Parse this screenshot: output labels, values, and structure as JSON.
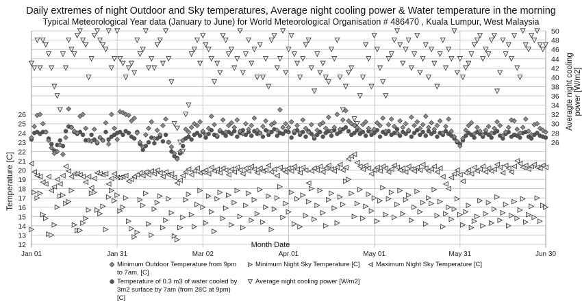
{
  "chart_data": {
    "type": "scatter",
    "title": "Daily extremes of night Outdoor and Sky temperatures, Average night cooling power & Water temperature in the morning",
    "subtitle": "Typical Meteorological Year data (January to June) for World Meteorological Organisation # 486470 , Kuala Lumpur, West Malaysia",
    "xlabel": "Month Date",
    "ylabel": "Temperature [C]",
    "ylabel_right": "Averagte night cooling power  [W/m2]",
    "x_ticks": [
      {
        "day": 0,
        "label": "Jan 01"
      },
      {
        "day": 30,
        "label": "Jan 31"
      },
      {
        "day": 60,
        "label": "Mar 02"
      },
      {
        "day": 90,
        "label": "Apr 01"
      },
      {
        "day": 120,
        "label": "May 01"
      },
      {
        "day": 150,
        "label": "May 31"
      },
      {
        "day": 180,
        "label": "Jun 30"
      }
    ],
    "xlim": [
      0,
      180
    ],
    "ylim": [
      12,
      35
    ],
    "y_ticks": [
      12,
      13,
      14,
      15,
      16,
      17,
      18,
      19,
      20,
      21,
      22,
      23,
      24,
      25,
      26
    ],
    "ylim_right": [
      8,
      54
    ],
    "y_ticks_right": [
      26,
      28,
      30,
      32,
      34,
      36,
      38,
      40,
      42,
      44,
      46,
      48,
      50
    ],
    "grid": true,
    "legend_position": "bottom",
    "series": [
      {
        "name": "Minimum Outdoor Temperature from 9pm to 7am. [C]",
        "axis": "left",
        "marker": "diamond",
        "values": [
          23.5,
          24.7,
          25.9,
          26.0,
          25.0,
          24.1,
          23.2,
          22.4,
          21.8,
          22.0,
          22.7,
          21.7,
          23.5,
          26.6,
          24.6,
          24.2,
          24.0,
          25.8,
          26.0,
          24.5,
          23.2,
          23.1,
          24.4,
          23.0,
          23.5,
          23.2,
          25.1,
          22.8,
          26.0,
          24.5,
          23.3,
          26.3,
          26.2,
          26.0,
          25.9,
          25.3,
          25.6,
          24.0,
          23.0,
          22.5,
          23.8,
          24.5,
          25.2,
          23.4,
          24.3,
          23.8,
          24.8,
          25.5,
          23.0,
          22.5,
          21.8,
          21.2,
          22.0,
          23.2,
          24.4,
          24.1,
          24.6,
          25.0,
          24.8,
          25.2,
          24.2,
          23.8,
          24.5,
          25.8,
          24.9,
          23.7,
          24.3,
          25.4,
          24.1,
          24.8,
          25.1,
          24.6,
          25.4,
          24.2,
          23.9,
          25.0,
          24.4,
          24.8,
          25.6,
          24.3,
          24.0,
          24.7,
          25.3,
          24.1,
          24.9,
          25.1,
          24.3,
          26.5,
          24.6,
          25.0,
          24.6,
          25.2,
          24.2,
          24.8,
          24.0,
          25.4,
          24.5,
          24.1,
          24.9,
          23.6,
          24.3,
          24.9,
          25.1,
          24.5,
          25.7,
          24.2,
          24.6,
          26.0,
          24.4,
          25.4,
          26.4,
          25.3,
          25.0,
          24.8,
          24.6,
          24.3,
          24.9,
          25.2,
          24.5,
          24.1,
          24.4,
          25.1,
          24.8,
          25.6,
          24.2,
          24.9,
          25.5,
          24.7,
          24.0,
          25.3,
          24.6,
          25.0,
          24.3,
          25.7,
          24.8,
          25.2,
          24.5,
          24.9,
          25.8,
          24.6,
          25.1,
          24.4,
          24.8,
          25.3,
          24.0,
          24.7,
          25.5,
          24.2,
          23.6,
          23.1,
          22.6,
          23.4,
          24.3,
          24.8,
          25.1,
          23.9,
          24.6,
          24.2,
          23.8,
          24.3,
          24.7,
          24.0,
          24.5,
          25.2,
          24.8,
          23.7,
          24.1,
          24.6,
          25.4,
          25.3,
          24.4,
          24.0,
          24.6,
          25.5,
          24.2,
          23.8,
          24.9,
          25.0,
          24.5,
          24.3,
          24.1
        ]
      },
      {
        "name": "Minimum Night Sky Temperature [C]",
        "axis": "left",
        "marker": "triangle-right",
        "values": [
          13.6,
          17.6,
          17.0,
          17.5,
          15.2,
          14.8,
          13.1,
          13.0,
          14.1,
          16.0,
          17.2,
          17.3,
          16.4,
          16.6,
          17.8,
          14.1,
          13.5,
          13.5,
          14.3,
          14.8,
          15.7,
          17.5,
          17.6,
          15.7,
          15.3,
          16.1,
          13.6,
          17.1,
          17.8,
          16.7,
          17.3,
          15.6,
          16.0,
          17.0,
          14.5,
          13.7,
          12.8,
          13.3,
          16.8,
          16.2,
          17.5,
          14.2,
          13.0,
          15.8,
          16.5,
          17.2,
          13.8,
          14.6,
          16.9,
          15.4,
          12.9,
          12.5,
          13.8,
          14.9,
          16.8,
          17.4,
          15.2,
          13.9,
          16.3,
          17.8,
          16.0,
          14.3,
          17.2,
          15.5,
          13.4,
          16.9,
          17.6,
          14.8,
          15.9,
          17.3,
          14.1,
          16.5,
          17.8,
          15.0,
          13.8,
          16.2,
          17.5,
          14.6,
          16.8,
          15.3,
          17.9,
          14.4,
          16.0,
          17.2,
          13.6,
          15.8,
          17.0,
          18.2,
          14.9,
          16.4,
          15.5,
          17.6,
          14.2,
          16.9,
          13.9,
          17.3,
          15.1,
          16.6,
          18.0,
          14.7,
          16.2,
          17.8,
          15.4,
          14.0,
          16.8,
          17.5,
          15.9,
          14.3,
          17.1,
          16.3,
          18.8,
          19.0,
          17.5,
          15.0,
          16.4,
          17.9,
          14.8,
          16.1,
          17.4,
          15.6,
          17.0,
          14.5,
          16.7,
          18.1,
          15.2,
          16.9,
          17.6,
          14.9,
          16.3,
          17.8,
          15.3,
          16.8,
          17.3,
          14.6,
          16.0,
          17.7,
          15.5,
          16.5,
          14.2,
          17.0,
          16.4,
          17.9,
          15.1,
          16.6,
          13.9,
          15.3,
          16.0,
          14.7,
          15.8,
          16.9,
          15.2,
          14.1,
          15.5,
          16.2,
          13.8,
          14.5,
          15.0,
          16.7,
          14.0,
          15.3,
          16.5,
          14.3,
          15.8,
          17.1,
          14.6,
          15.4,
          16.3,
          14.0,
          15.1,
          16.6,
          14.8,
          15.7,
          16.9,
          14.4,
          15.2,
          16.1,
          14.9,
          17.0,
          14.5,
          16.2,
          16.0
        ]
      },
      {
        "name": "Maximum Night Sky Temperature [C]",
        "axis": "left",
        "marker": "triangle-left",
        "values": [
          20.7,
          19.8,
          19.4,
          19.3,
          18.7,
          18.5,
          19.3,
          17.8,
          18.2,
          19.0,
          18.5,
          19.4,
          20.4,
          19.9,
          19.3,
          19.6,
          19.6,
          19.5,
          19.3,
          18.7,
          19.3,
          18.1,
          19.1,
          19.7,
          19.6,
          19.5,
          19.6,
          18.5,
          19.1,
          19.6,
          19.2,
          19.2,
          19.3,
          19.4,
          18.8,
          19.0,
          19.3,
          19.5,
          19.7,
          19.4,
          19.8,
          19.5,
          19.9,
          19.6,
          20.0,
          19.7,
          19.3,
          19.8,
          19.5,
          19.6,
          19.2,
          18.6,
          18.9,
          19.4,
          19.8,
          20.1,
          19.5,
          19.9,
          20.2,
          19.7,
          19.8,
          20.0,
          19.6,
          20.3,
          19.9,
          20.1,
          19.7,
          20.2,
          20.0,
          19.5,
          20.1,
          19.8,
          20.3,
          20.0,
          19.6,
          20.2,
          19.9,
          20.4,
          20.1,
          19.7,
          20.2,
          19.9,
          20.0,
          20.5,
          19.8,
          20.1,
          19.4,
          20.3,
          20.0,
          19.8,
          20.2,
          19.9,
          20.4,
          20.1,
          19.7,
          20.3,
          20.0,
          18.6,
          19.9,
          20.2,
          20.0,
          20.4,
          19.8,
          20.2,
          20.5,
          20.1,
          19.9,
          20.3,
          20.6,
          20.0,
          20.3,
          21.2,
          21.5,
          21.7,
          20.8,
          20.4,
          20.1,
          20.5,
          20.2,
          19.6,
          20.0,
          20.3,
          19.9,
          20.4,
          20.2,
          19.8,
          20.1,
          20.5,
          20.3,
          20.0,
          20.2,
          19.8,
          20.4,
          20.1,
          19.9,
          20.3,
          20.0,
          20.6,
          20.2,
          19.9,
          20.1,
          20.4,
          19.8,
          20.2,
          19.3,
          18.5,
          18.0,
          19.2,
          19.6,
          20.0,
          19.5,
          18.8,
          19.7,
          20.0,
          19.6,
          20.3,
          19.9,
          20.1,
          20.4,
          19.8,
          20.2,
          19.9,
          20.1,
          20.6,
          20.3,
          19.7,
          20.5,
          20.2,
          19.8,
          20.4,
          21.0,
          20.7,
          20.3,
          20.5,
          20.1,
          20.4,
          20.6,
          20.3,
          20.2,
          20.5,
          20.3
        ]
      },
      {
        "name": "Temperature of 0.3 m3 of water cooled by 3m2 surface by 7am (from 28C at 9pm) [C]",
        "axis": "left",
        "marker": "circle",
        "values": [
          23.3,
          24.0,
          24.1,
          23.9,
          24.1,
          24.1,
          23.4,
          22.8,
          22.1,
          22.7,
          23.2,
          22.6,
          24.2,
          24.7,
          24.6,
          24.1,
          23.9,
          24.1,
          23.8,
          23.2,
          23.2,
          23.8,
          23.3,
          22.9,
          23.5,
          23.2,
          24.1,
          23.3,
          23.6,
          23.8,
          24.0,
          24.1,
          23.8,
          24.2,
          24.0,
          23.6,
          23.4,
          24.1,
          22.8,
          22.2,
          22.6,
          23.0,
          23.5,
          22.9,
          23.4,
          23.6,
          23.1,
          23.8,
          23.0,
          22.0,
          21.5,
          21.3,
          21.8,
          22.6,
          23.4,
          23.6,
          23.3,
          23.8,
          24.0,
          23.7,
          24.1,
          23.5,
          23.9,
          24.3,
          23.8,
          23.6,
          24.2,
          24.0,
          23.7,
          24.1,
          23.9,
          24.2,
          23.6,
          24.0,
          24.3,
          23.8,
          24.1,
          23.7,
          24.2,
          23.9,
          24.0,
          23.6,
          24.3,
          23.8,
          24.1,
          24.4,
          23.7,
          24.0,
          23.9,
          24.2,
          24.1,
          23.5,
          24.0,
          24.3,
          23.8,
          24.1,
          23.6,
          24.2,
          23.9,
          23.4,
          23.8,
          24.1,
          23.6,
          24.0,
          24.2,
          23.7,
          24.3,
          23.9,
          24.1,
          24.4,
          24.6,
          24.2,
          23.8,
          24.0,
          24.3,
          23.9,
          24.1,
          23.7,
          24.2,
          23.8,
          24.0,
          24.3,
          23.6,
          24.1,
          23.9,
          24.2,
          23.8,
          24.0,
          24.4,
          23.7,
          24.1,
          23.9,
          24.2,
          23.6,
          24.0,
          24.3,
          23.8,
          24.1,
          23.7,
          24.2,
          23.9,
          24.1,
          23.6,
          24.0,
          23.8,
          24.2,
          23.9,
          23.7,
          23.4,
          23.0,
          22.8,
          23.2,
          23.7,
          24.0,
          23.8,
          23.5,
          24.1,
          23.9,
          23.6,
          24.0,
          23.8,
          23.5,
          24.0,
          24.2,
          23.7,
          23.4,
          23.9,
          24.1,
          23.6,
          23.8,
          23.7,
          23.5,
          24.0,
          24.1,
          23.6,
          23.4,
          23.8,
          24.0,
          23.7,
          23.6,
          23.5
        ]
      },
      {
        "name": "Average night cooling power [W/m2]",
        "axis": "right",
        "marker": "triangle-down",
        "values": [
          43,
          42,
          48,
          42,
          48,
          47,
          45,
          42,
          38,
          36,
          33,
          45,
          42,
          48,
          46,
          45,
          49,
          50,
          48,
          47,
          40,
          44,
          49,
          50,
          48,
          47,
          46,
          50,
          42,
          44,
          50,
          44,
          43,
          40,
          42,
          43,
          41,
          48,
          45,
          46,
          50,
          42,
          44,
          42,
          47,
          48,
          43,
          50,
          44,
          39,
          30,
          29,
          26,
          24,
          32,
          34,
          45,
          46,
          48,
          43,
          49,
          47,
          46,
          44,
          39,
          43,
          41,
          49,
          48,
          45,
          46,
          42,
          44,
          50,
          41,
          45,
          48,
          43,
          46,
          40,
          47,
          40,
          44,
          38,
          48,
          49,
          42,
          44,
          50,
          41,
          46,
          49,
          45,
          43,
          40,
          44,
          47,
          48,
          42,
          37,
          45,
          41,
          43,
          40,
          39,
          46,
          44,
          48,
          40,
          33,
          38,
          41,
          42,
          31,
          30,
          36,
          40,
          47,
          44,
          38,
          49,
          46,
          42,
          39,
          36,
          44,
          45,
          48,
          50,
          47,
          43,
          46,
          48,
          42,
          45,
          49,
          41,
          44,
          47,
          40,
          46,
          43,
          38,
          45,
          48,
          42,
          46,
          44,
          50,
          41,
          44,
          40,
          42,
          43,
          45,
          47,
          48,
          49,
          44,
          46,
          45,
          48,
          49,
          37,
          41,
          48,
          45,
          47,
          44,
          49,
          42,
          40,
          50,
          47,
          46,
          49,
          48,
          50,
          47,
          46,
          47
        ]
      }
    ]
  },
  "legend": {
    "outdoor_min": "Minimum Outdoor Temperature from 9pm to 7am. [C]",
    "sky_min": "Minimum Night Sky Temperature [C]",
    "sky_max": "Maximum Night Sky Temperature [C]",
    "water": "Temperature of 0.3 m3 of water cooled by 3m2 surface by 7am (from 28C at 9pm) [C]",
    "cooling": "Average night cooling power [W/m2]"
  },
  "colors": {
    "grid": "#c8c8c8",
    "marker_dark": "#555555",
    "marker_mid": "#8a8a8a",
    "marker_light": "#e4e4e4",
    "stroke": "#333333"
  }
}
